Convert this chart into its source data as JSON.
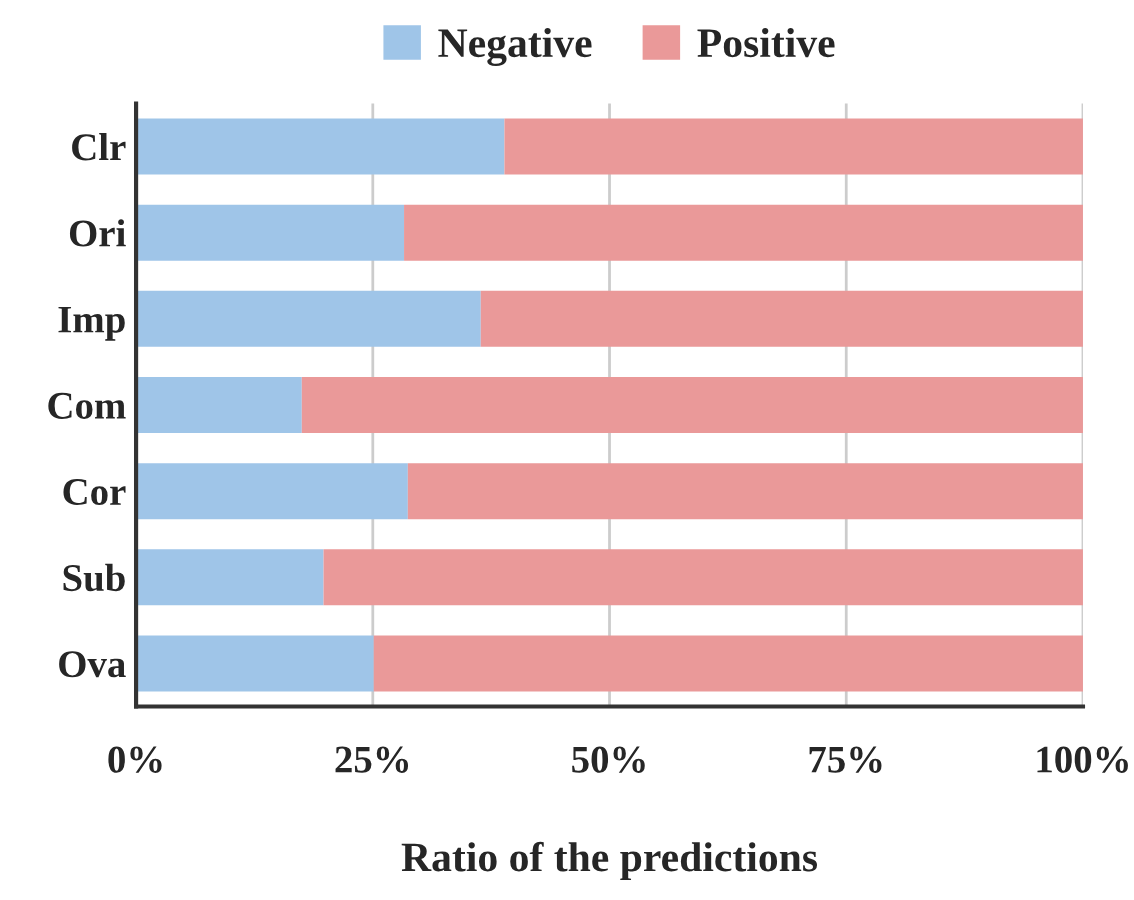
{
  "chart_data": {
    "type": "bar",
    "orientation": "horizontal",
    "stacked": true,
    "xlabel": "Ratio of the predictions",
    "categories": [
      "Clr",
      "Ori",
      "Imp",
      "Com",
      "Cor",
      "Sub",
      "Ova"
    ],
    "series": [
      {
        "name": "Negative",
        "color": "#9fc5e8",
        "values": [
          38.9,
          28.3,
          36.4,
          17.5,
          28.7,
          19.8,
          25.1
        ]
      },
      {
        "name": "Positive",
        "color": "#ea9999",
        "values": [
          61.1,
          71.7,
          63.6,
          82.5,
          71.3,
          80.2,
          74.9
        ]
      }
    ],
    "xlim": [
      0,
      100
    ],
    "xticks": [
      {
        "value": 0,
        "label": "0%"
      },
      {
        "value": 25,
        "label": "25%"
      },
      {
        "value": 50,
        "label": "50%"
      },
      {
        "value": 75,
        "label": "75%"
      },
      {
        "value": 100,
        "label": "100%"
      }
    ],
    "grid": "x",
    "legend": "top"
  }
}
